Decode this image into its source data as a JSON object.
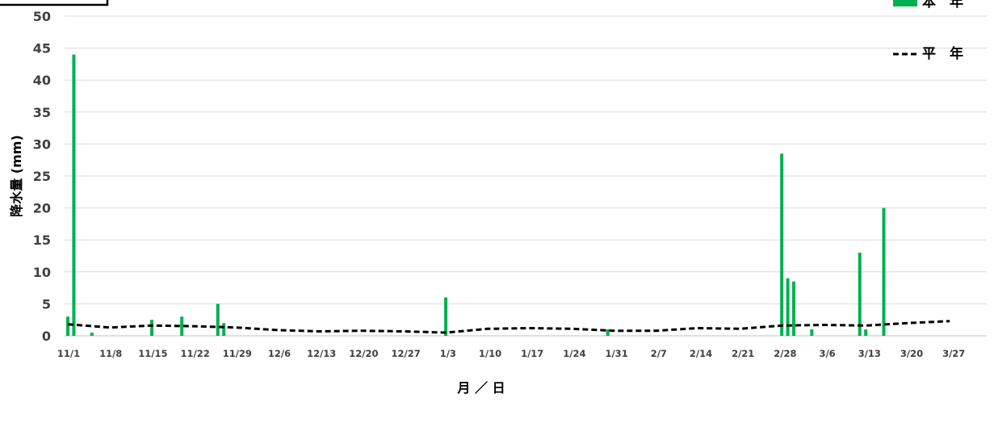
{
  "chart_data": {
    "type": "bar",
    "title": "",
    "xlabel": "月 ／ 日",
    "ylabel": "降水量 (mm)",
    "ylim": [
      0,
      50
    ],
    "yticks": [
      "0",
      "5",
      "10",
      "15",
      "20",
      "25",
      "30",
      "35",
      "40",
      "45",
      "50"
    ],
    "xticks": [
      "11/1",
      "11/8",
      "11/15",
      "11/22",
      "11/29",
      "12/6",
      "12/13",
      "12/20",
      "12/27",
      "1/3",
      "1/10",
      "1/17",
      "1/24",
      "1/31",
      "2/7",
      "2/14",
      "2/21",
      "2/28",
      "3/6",
      "3/13",
      "3/20",
      "3/27"
    ],
    "grid": true,
    "legend_position": "top-right",
    "colors": {
      "current_year": "#00b050",
      "normal_year": "#000000"
    },
    "series": [
      {
        "name": "本　年",
        "kind": "bar",
        "day_index": [
          0,
          1,
          4,
          14,
          19,
          25,
          26,
          63,
          90,
          119,
          120,
          121,
          124,
          132,
          133,
          136
        ],
        "values": [
          3,
          44,
          0.5,
          2.5,
          3,
          5,
          2,
          6,
          1,
          28.5,
          9,
          8.5,
          1,
          13,
          1,
          20
        ]
      },
      {
        "name": "平　年",
        "kind": "line",
        "style": "dashed",
        "day_index": [
          0,
          7,
          14,
          21,
          28,
          35,
          42,
          49,
          56,
          63,
          70,
          77,
          84,
          91,
          98,
          105,
          112,
          119,
          126,
          133,
          140,
          147
        ],
        "values": [
          1.8,
          1.3,
          1.6,
          1.5,
          1.3,
          0.9,
          0.7,
          0.8,
          0.7,
          0.5,
          1.1,
          1.2,
          1.1,
          0.8,
          0.8,
          1.2,
          1.1,
          1.6,
          1.7,
          1.6,
          2.0,
          2.3
        ]
      }
    ]
  }
}
